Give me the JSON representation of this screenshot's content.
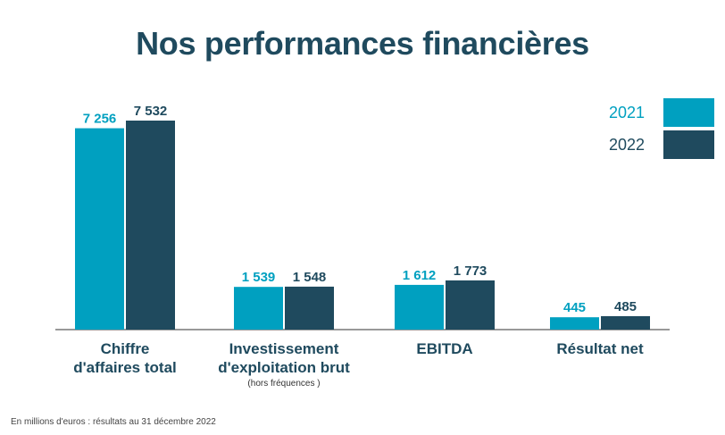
{
  "title": "Nos performances financières",
  "footnote": "En millions d'euros : résultats au 31 décembre 2022",
  "colors": {
    "2021": "#00a0c0",
    "2022": "#1f4a5e",
    "title": "#1f4a5e"
  },
  "legend": [
    {
      "label": "2021",
      "color": "#00a0c0"
    },
    {
      "label": "2022",
      "color": "#1f4a5e"
    }
  ],
  "chart_data": {
    "type": "bar",
    "title": "Nos performances financières",
    "categories": [
      [
        "Chiffre",
        "d'affaires total"
      ],
      [
        "Investissement",
        "d'exploitation brut"
      ],
      [
        "EBITDA"
      ],
      [
        "Résultat net"
      ]
    ],
    "category_notes": [
      "",
      "(hors fréquences )",
      "",
      ""
    ],
    "series": [
      {
        "name": "2021",
        "values": [
          7256,
          1539,
          1612,
          445
        ],
        "labels": [
          "7 256",
          "1 539",
          "1 612",
          "445"
        ],
        "color": "#00a0c0"
      },
      {
        "name": "2022",
        "values": [
          7532,
          1548,
          1773,
          485
        ],
        "labels": [
          "7 532",
          "1 548",
          "1 773",
          "485"
        ],
        "color": "#1f4a5e"
      }
    ],
    "grid": false,
    "legend_position": "top-right"
  }
}
